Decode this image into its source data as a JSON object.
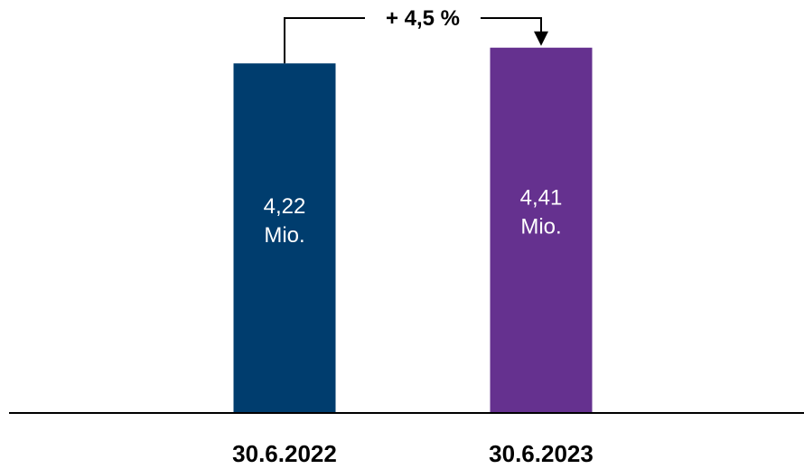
{
  "chart_data": {
    "type": "bar",
    "categories": [
      "30.6.2022",
      "30.6.2023"
    ],
    "values": [
      4.22,
      4.41
    ],
    "unit": "Mio.",
    "value_labels": [
      "4,22",
      "4,41"
    ],
    "colors": [
      "#003D6E",
      "#65318F"
    ],
    "ylim": [
      0,
      4.8
    ],
    "grid": false,
    "legend": "none",
    "title": "",
    "xlabel": "",
    "ylabel": "",
    "annotation": {
      "text": "+ 4,5 %",
      "from": "30.6.2022",
      "to": "30.6.2023"
    }
  }
}
